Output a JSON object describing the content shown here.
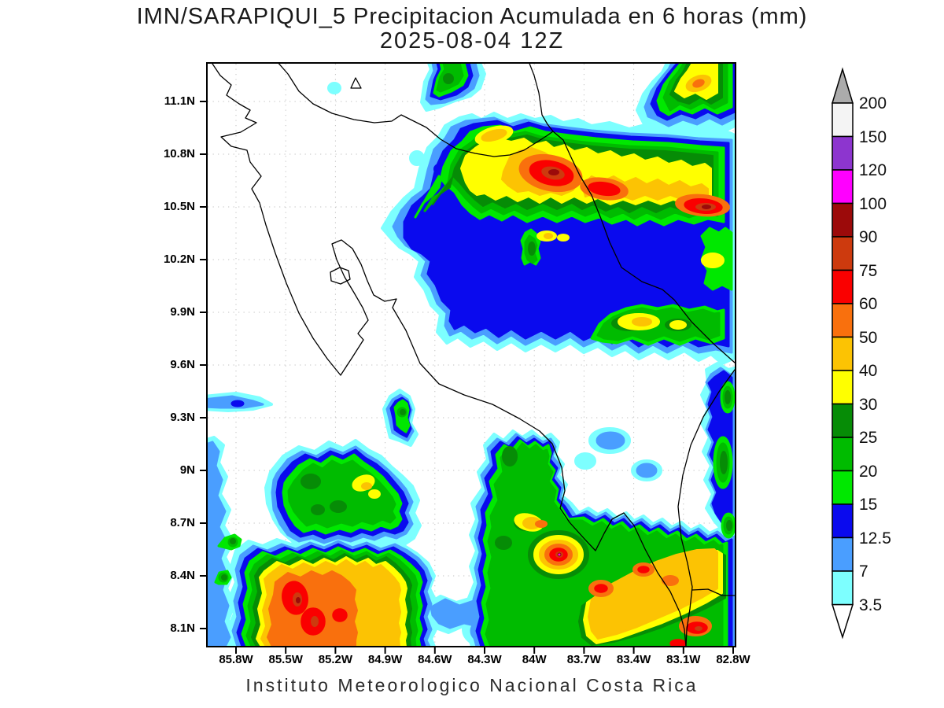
{
  "title": {
    "line1": "IMN/SARAPIQUI_5 Precipitacion Acumulada en 6 horas (mm)",
    "line2": "2025-08-04 12Z"
  },
  "footer": "Instituto Meteorologico Nacional Costa Rica",
  "axes": {
    "lat_ticks": [
      "11.1N",
      "10.8N",
      "10.5N",
      "10.2N",
      "9.9N",
      "9.6N",
      "9.3N",
      "9N",
      "8.7N",
      "8.4N",
      "8.1N"
    ],
    "lon_ticks": [
      "85.8W",
      "85.5W",
      "85.2W",
      "84.9W",
      "84.6W",
      "84.3W",
      "84W",
      "83.7W",
      "83.4W",
      "83.1W",
      "82.8W"
    ]
  },
  "colorbar": {
    "labels": [
      "200",
      "150",
      "120",
      "100",
      "90",
      "75",
      "60",
      "50",
      "40",
      "30",
      "25",
      "20",
      "15",
      "12.5",
      "7",
      "3.5"
    ],
    "box_colors_top_to_bottom": [
      "#F4F4F4",
      "#8D35CF",
      "#FF00FF",
      "#9C0A0A",
      "#CD3A0E",
      "#FA0000",
      "#F9700D",
      "#FCC303",
      "#FFFF00",
      "#068C06",
      "#00BB00",
      "#00E800",
      "#0A0AEE",
      "#4A9EFF",
      "#7DFFFF"
    ],
    "over_color": "#ABABAB",
    "under_color": "#FFFFFF"
  },
  "chart_data": {
    "type": "heatmap",
    "title": "IMN/SARAPIQUI_5 Precipitacion Acumulada en 6 horas (mm)",
    "subtitle": "2025-08-04 12Z",
    "units": "mm",
    "lat_ticks": [
      "11.1N",
      "10.8N",
      "10.5N",
      "10.2N",
      "9.9N",
      "9.6N",
      "9.3N",
      "9N",
      "8.7N",
      "8.4N",
      "8.1N"
    ],
    "lon_ticks": [
      "85.8W",
      "85.5W",
      "85.2W",
      "84.9W",
      "84.6W",
      "84.3W",
      "84W",
      "83.7W",
      "83.4W",
      "83.1W",
      "82.8W"
    ],
    "levels_mm": [
      3.5,
      7,
      12.5,
      15,
      20,
      25,
      30,
      40,
      50,
      60,
      75,
      90,
      100,
      120,
      150,
      200
    ],
    "palette_low_to_high": [
      "#7DFFFF",
      "#4A9EFF",
      "#0A0AEE",
      "#00E800",
      "#00BB00",
      "#068C06",
      "#FFFF00",
      "#FCC303",
      "#F9700D",
      "#FA0000",
      "#CD3A0E",
      "#9C0A0A",
      "#FF00FF",
      "#8D35CF",
      "#F4F4F4"
    ],
    "extent": {
      "lon_west": "86.0W",
      "lon_east": "82.8W",
      "lat_south": "8.0N",
      "lat_north": "11.3N"
    },
    "features": [
      {
        "name": "northern-band",
        "description": "Large heavy-rain band 10.2N-11.0N from 84.5W to 82.8W over the Caribbean slope; cores 75-100 mm near 83.8W/10.65N, 83.5W/10.55N and 83.0W/10.45N surrounded by 30-60 mm yellow/orange and 15-30 mm green shields"
      },
      {
        "name": "northeast-corner-cell",
        "description": "30-50 mm yellow/gold cell near 83.0W/11.2N with green surround"
      },
      {
        "name": "caribbean-arm",
        "description": "20-50 mm green/yellow arm near 83.2-82.8W at 9.85N"
      },
      {
        "name": "southwest-storm",
        "description": "Intense offshore storm 8.0-8.45N / 85.6-85.0W with multiple 60-100 mm red cores inside 30-60 mm yellow/orange shield, extending to south edge"
      },
      {
        "name": "west-cluster",
        "description": "15-40 mm cells near 85.1W/8.85N with small yellow cores"
      },
      {
        "name": "south-central-cell",
        "description": "Compact intense cell near 83.75W/8.5N with 60-100+ mm core and small extreme center"
      },
      {
        "name": "south-coast-band",
        "description": "30-75 mm band along Pacific/Panama border from 83.6W/8.3N to 82.7W/8.1N with red cores"
      },
      {
        "name": "light-rain-fringes",
        "description": "3.5-15 mm cyan/blue fringes over northeast half, right edge 9.0-9.6N cells, 9.35N west-coast streak and 9.3N/84.7W small cell"
      }
    ]
  }
}
